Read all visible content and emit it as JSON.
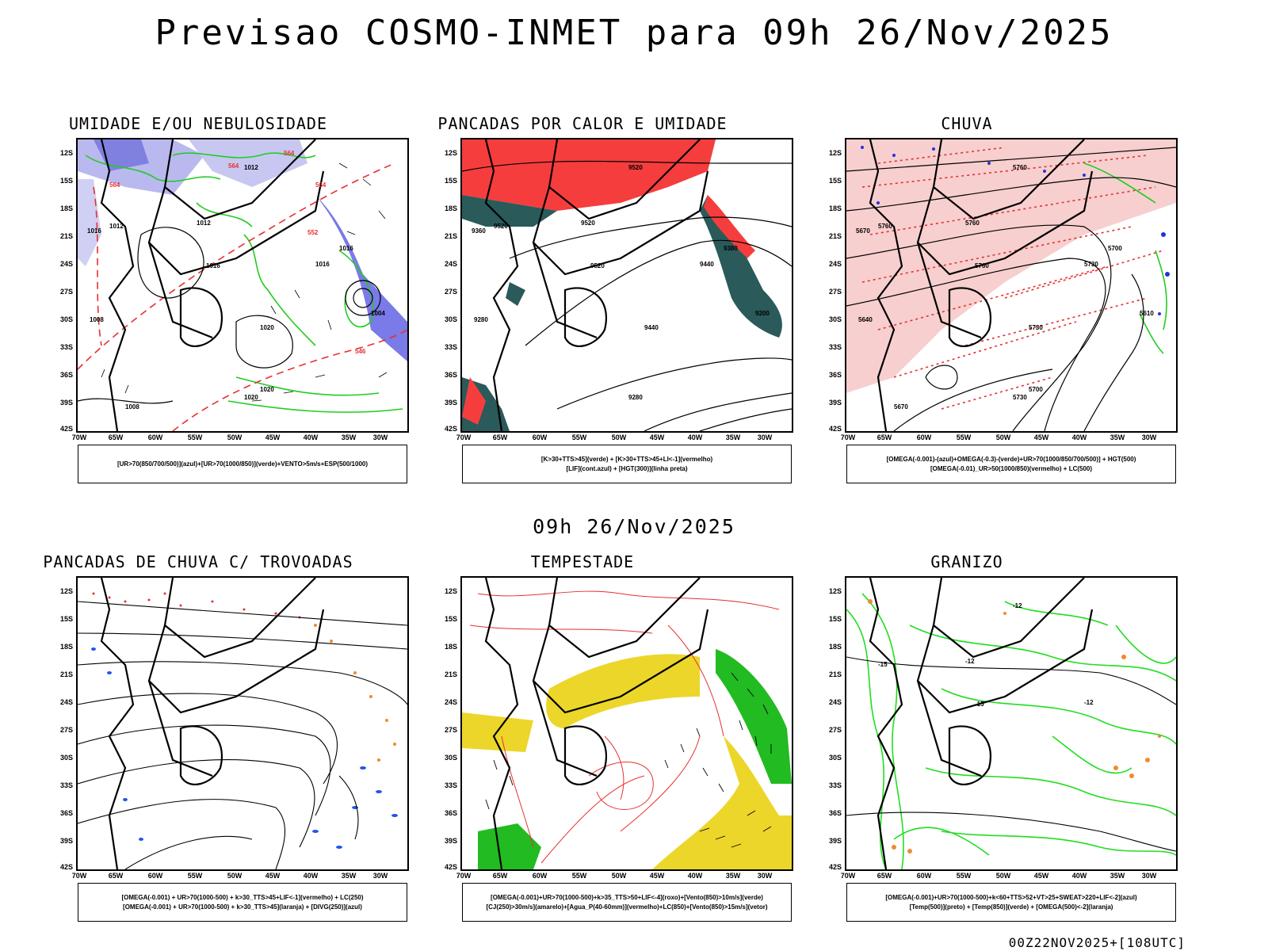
{
  "title": "Previsao COSMO-INMET  para 09h 26/Nov/2025",
  "mid_title": "09h 26/Nov/2025",
  "footer": "00Z22NOV2025+[108UTC]",
  "axes": {
    "lat_labels": [
      "12S",
      "15S",
      "18S",
      "21S",
      "24S",
      "27S",
      "30S",
      "33S",
      "36S",
      "39S",
      "42S"
    ],
    "lon_labels": [
      "70W",
      "65W",
      "60W",
      "55W",
      "50W",
      "45W",
      "40W",
      "35W",
      "30W"
    ]
  },
  "panels": [
    {
      "title": "UMIDADE E/OU NEBULOSIDADE",
      "legend": [
        "[UR>70(850/700/500)](azul)+[UR>70(1000/850)](verde)+VENTO>5m/s+ESP(500/1000)"
      ],
      "labels": [
        "1012",
        "1012",
        "1012",
        "1016",
        "1016",
        "1020",
        "1016",
        "1016",
        "1008",
        "1004",
        "1020",
        "1020",
        "1008",
        "564",
        "564",
        "552",
        "546",
        "564",
        "564"
      ]
    },
    {
      "title": "PANCADAS POR CALOR E UMIDADE",
      "legend": [
        "[K>30+TTS>45](verde) + [K>30+TTS>45+LI<-1](vermelho)",
        "[LIF](cont.azul) + [HGT(300)](linha preta)"
      ],
      "labels": [
        "9520",
        "9520",
        "9520",
        "9520",
        "9440",
        "9440",
        "9380",
        "9360",
        "9280",
        "9200",
        "9280"
      ]
    },
    {
      "title": "CHUVA",
      "legend": [
        "[OMEGA(-0.001)-(azul)+OMEGA(-0.3)-(verde)+UR>70(1000/850/700/500)] + HGT(500)",
        "[OMEGA(-0.01)_UR>50(1000/850)(vermelho) + LC(500)"
      ],
      "labels": [
        "5760",
        "5760",
        "5760",
        "5760",
        "5730",
        "5730",
        "5700",
        "5670",
        "5640",
        "5610",
        "5730",
        "5700",
        "5670"
      ]
    },
    {
      "title": "PANCADAS DE CHUVA C/ TROVOADAS",
      "legend": [
        "[OMEGA(-0.001) + UR>70(1000-500) + k>30_TTS>45+LIF<-1](vermelho) + LC(250)",
        "[OMEGA(-0.001) + UR>70(1000-500) + k>30_TTS>45](laranja) + [DIVG(250)](azul)"
      ],
      "labels": []
    },
    {
      "title": "TEMPESTADE",
      "legend": [
        "[OMEGA(-0.001)+UR>70(1000-500)+k>35_TTS>50+LIF<-4](roxo)+[Vento(850)>10m/s](verde)",
        "[CJ(250)>30m/s](amarelo)+[Agua_P(40-60mm)](vermelho)+LC(850)+[Vento(850)>15m/s](vetor)"
      ],
      "labels": []
    },
    {
      "title": "GRANIZO",
      "legend": [
        "[OMEGA(-0.001)+UR>70(1000-500)+k<60+TTS>52+VT>25+SWEAT>220+LIF<-2](azul)",
        "[Temp(500)](preto) + [Temp(850)](verde) + [OMEGA(500)<-2](laranja)"
      ],
      "labels": [
        "-12",
        "-12",
        "-15",
        "-15",
        "-12"
      ]
    }
  ]
}
